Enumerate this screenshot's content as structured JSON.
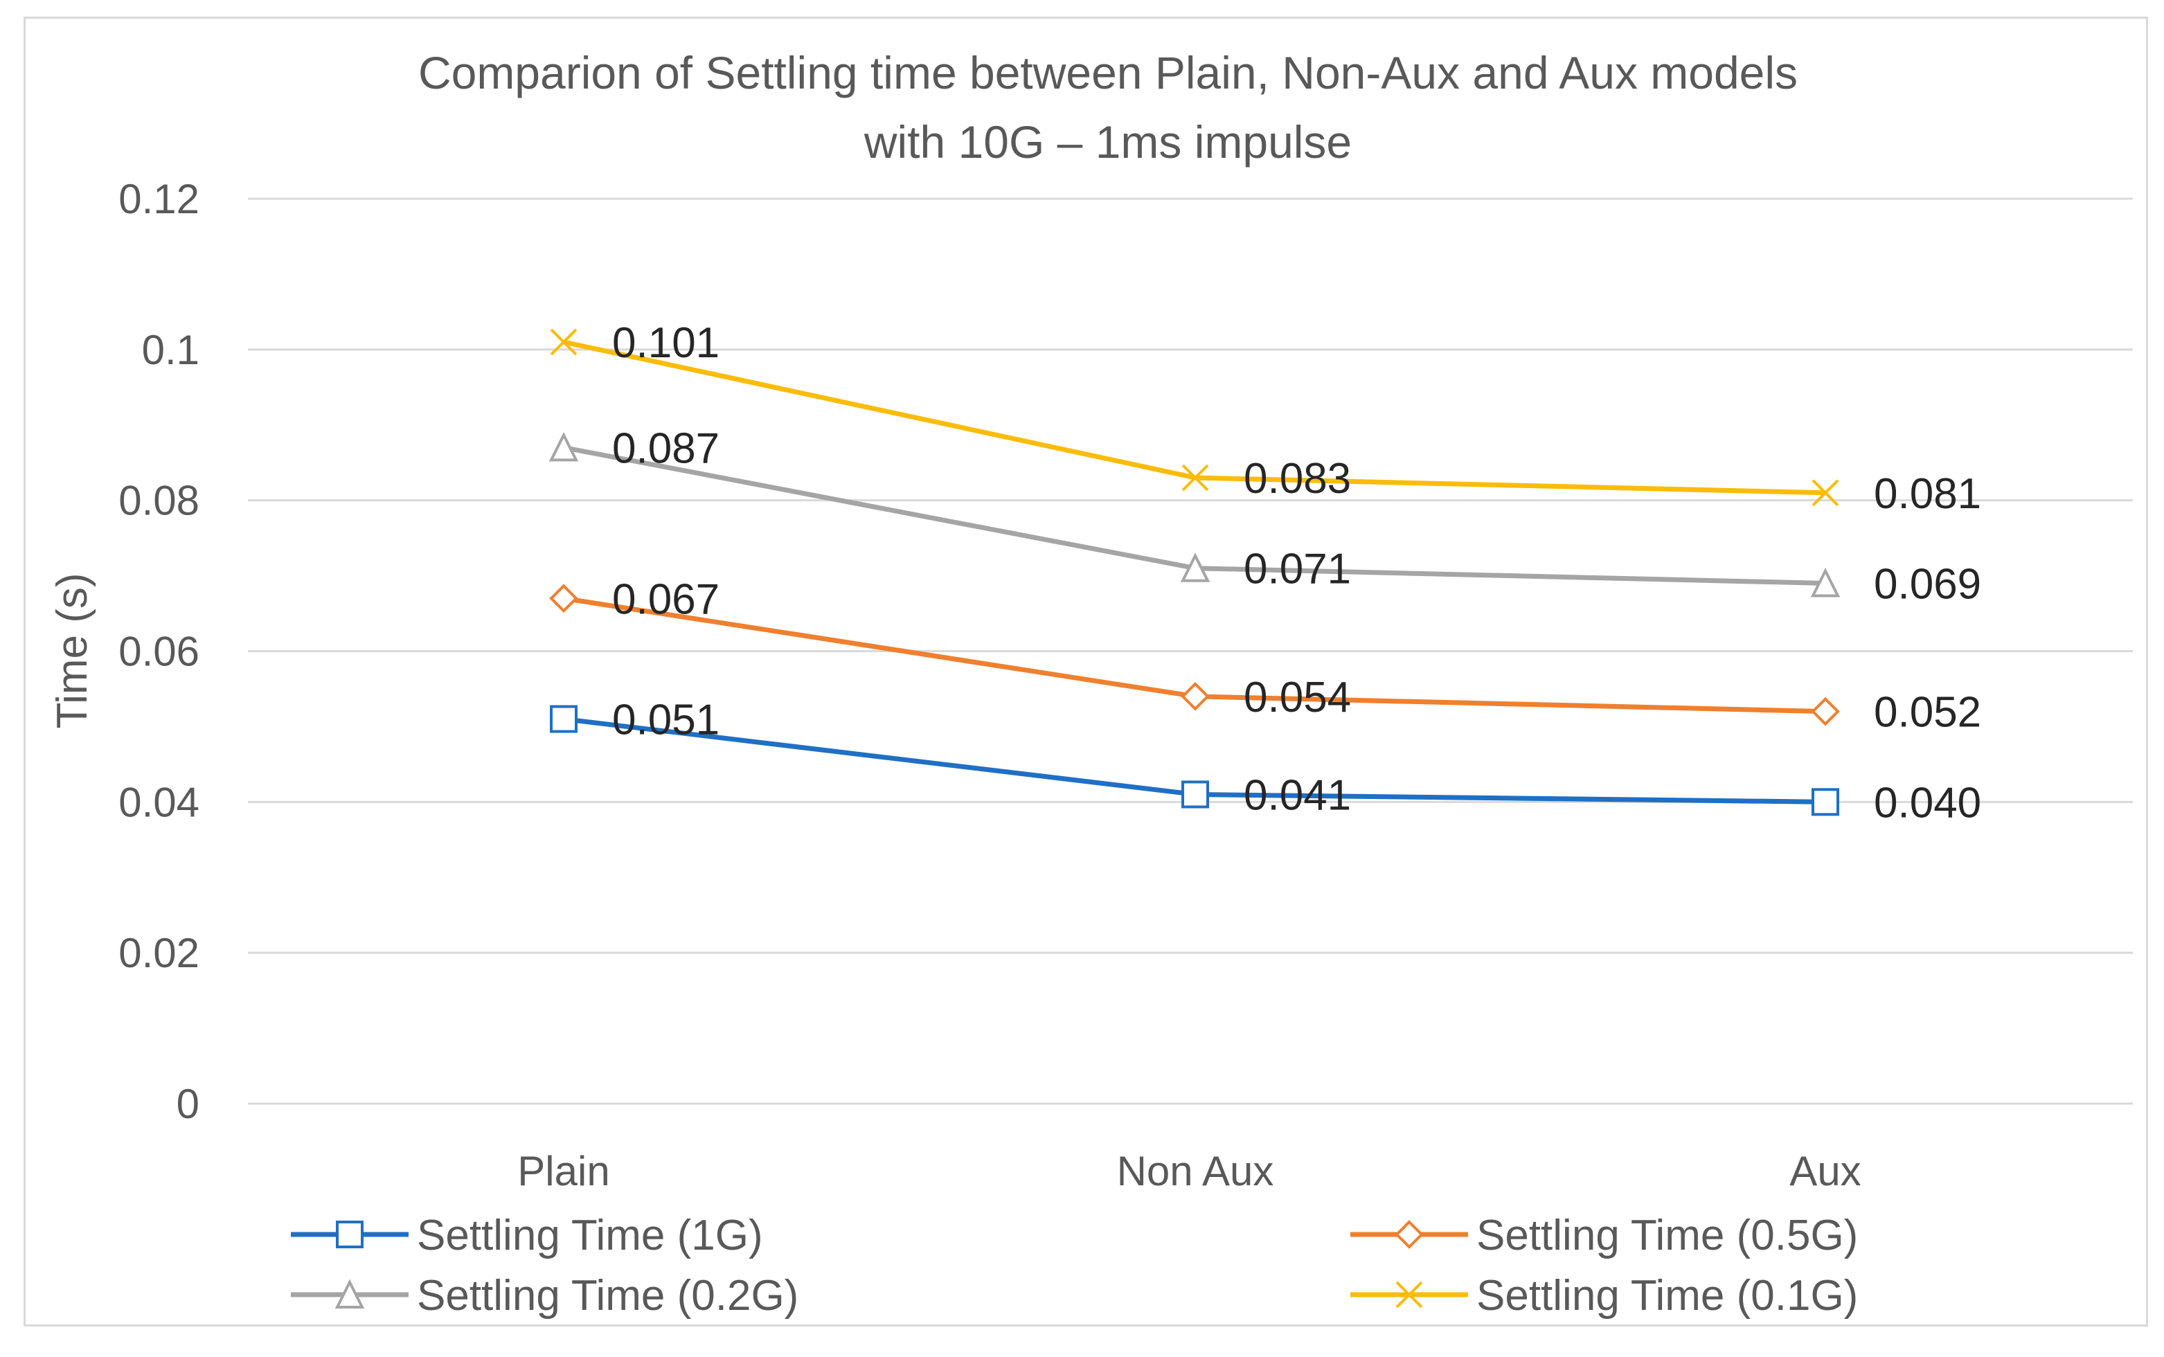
{
  "chart_data": {
    "type": "line",
    "title": [
      "Comparion of Settling time between Plain, Non-Aux and Aux models",
      "with 10G – 1ms impulse"
    ],
    "xlabel": "",
    "ylabel": "Time (s)",
    "categories": [
      "Plain",
      "Non Aux",
      "Aux"
    ],
    "ylim": [
      0,
      0.12
    ],
    "yticks": [
      0,
      0.02,
      0.04,
      0.06,
      0.08,
      0.1,
      0.12
    ],
    "ytick_labels": [
      "0",
      "0.02",
      "0.04",
      "0.06",
      "0.08",
      "0.1",
      "0.12"
    ],
    "grid": "horizontal",
    "legend_position": "bottom",
    "series": [
      {
        "name": "Settling Time (1G)",
        "values": [
          0.051,
          0.041,
          0.04
        ],
        "labels": [
          "0.051",
          "0.041",
          "0.040"
        ],
        "color": "#1f6fc5",
        "marker": "square"
      },
      {
        "name": "Settling Time (0.5G)",
        "values": [
          0.067,
          0.054,
          0.052
        ],
        "labels": [
          "0.067",
          "0.054",
          "0.052"
        ],
        "color": "#f07f2e",
        "marker": "diamond"
      },
      {
        "name": "Settling Time (0.2G)",
        "values": [
          0.087,
          0.071,
          0.069
        ],
        "labels": [
          "0.087",
          "0.071",
          "0.069"
        ],
        "color": "#a5a5a5",
        "marker": "triangle"
      },
      {
        "name": "Settling Time (0.1G)",
        "values": [
          0.101,
          0.083,
          0.081
        ],
        "labels": [
          "0.101",
          "0.083",
          "0.081"
        ],
        "color": "#fbbc09",
        "marker": "x"
      }
    ],
    "gridline_color": "#d9d9d9"
  }
}
